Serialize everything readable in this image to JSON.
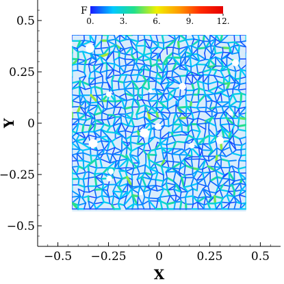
{
  "chart_data": {
    "type": "heatmap",
    "title": "",
    "xlabel": "X",
    "ylabel": "Y",
    "xlim": [
      -0.6,
      0.6
    ],
    "ylim": [
      -0.6,
      0.6
    ],
    "x_ticks": [
      -0.5,
      -0.25,
      0,
      0.25,
      0.5
    ],
    "y_ticks": [
      -0.5,
      -0.25,
      0,
      0.25,
      0.5
    ],
    "x_tick_labels": [
      "−0.5",
      "−0.25",
      "0",
      "0.25",
      "0.5"
    ],
    "y_tick_labels": [
      "−0.5",
      "−0.25",
      "0",
      "0.25",
      "0.5"
    ],
    "data_region": {
      "xmin": -0.43,
      "xmax": 0.43,
      "ymin": -0.43,
      "ymax": 0.43
    },
    "colorbar": {
      "title": "F",
      "range": [
        0,
        12
      ],
      "ticks": [
        0,
        3,
        6,
        9,
        12
      ],
      "tick_labels": [
        "0.",
        "3.",
        "6.",
        "9.",
        "12."
      ],
      "colors": [
        "#1a1aff",
        "#00c8ff",
        "#22e08a",
        "#f0f000",
        "#ff9a00",
        "#ff2a00",
        "#e60000"
      ],
      "position": "top"
    },
    "description_note": "force-chain network of edges colored by F; most values between 0 and 3",
    "grid": false
  }
}
